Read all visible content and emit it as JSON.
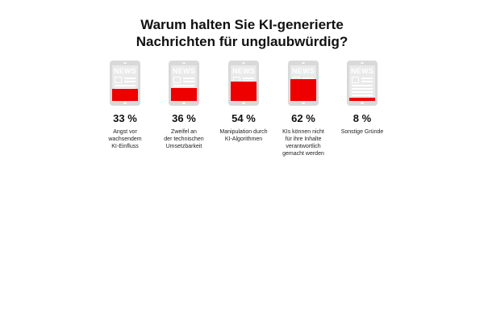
{
  "title_lines": [
    "Warum halten Sie KI-generierte",
    "Nachrichten für unglaubwürdig?"
  ],
  "icon_text": "NEWS",
  "colors": {
    "fill": "#ee0000",
    "device": "#d9d9d9",
    "screen": "#e9e9e9"
  },
  "chart_data": {
    "type": "bar",
    "title": "Warum halten Sie KI-generierte Nachrichten für unglaubwürdig?",
    "unit": "%",
    "ylim": [
      0,
      100
    ],
    "categories": [
      "Angst vor wachsendem KI-Einfluss",
      "Zweifel an der technischen Umsetzbarkeit",
      "Manipulation durch KI-Algorithmen",
      "KIs können nicht für ihre Inhalte verantwortlich gemacht werden",
      "Sonstige Gründe"
    ],
    "values": [
      33,
      36,
      54,
      62,
      8
    ],
    "value_labels": [
      "33 %",
      "36 %",
      "54 %",
      "62 %",
      "8 %"
    ],
    "label_lines": [
      [
        "Angst vor",
        "wachsendem",
        "KI-Einfluss"
      ],
      [
        "Zweifel an",
        "der technischen",
        "Umsetzbarkeit"
      ],
      [
        "Manipulation durch",
        "KI-Algorithmen"
      ],
      [
        "KIs können nicht",
        "für ihre Inhalte",
        "verantwortlich",
        "gemacht werden"
      ],
      [
        "Sonstige Gründe"
      ]
    ]
  }
}
